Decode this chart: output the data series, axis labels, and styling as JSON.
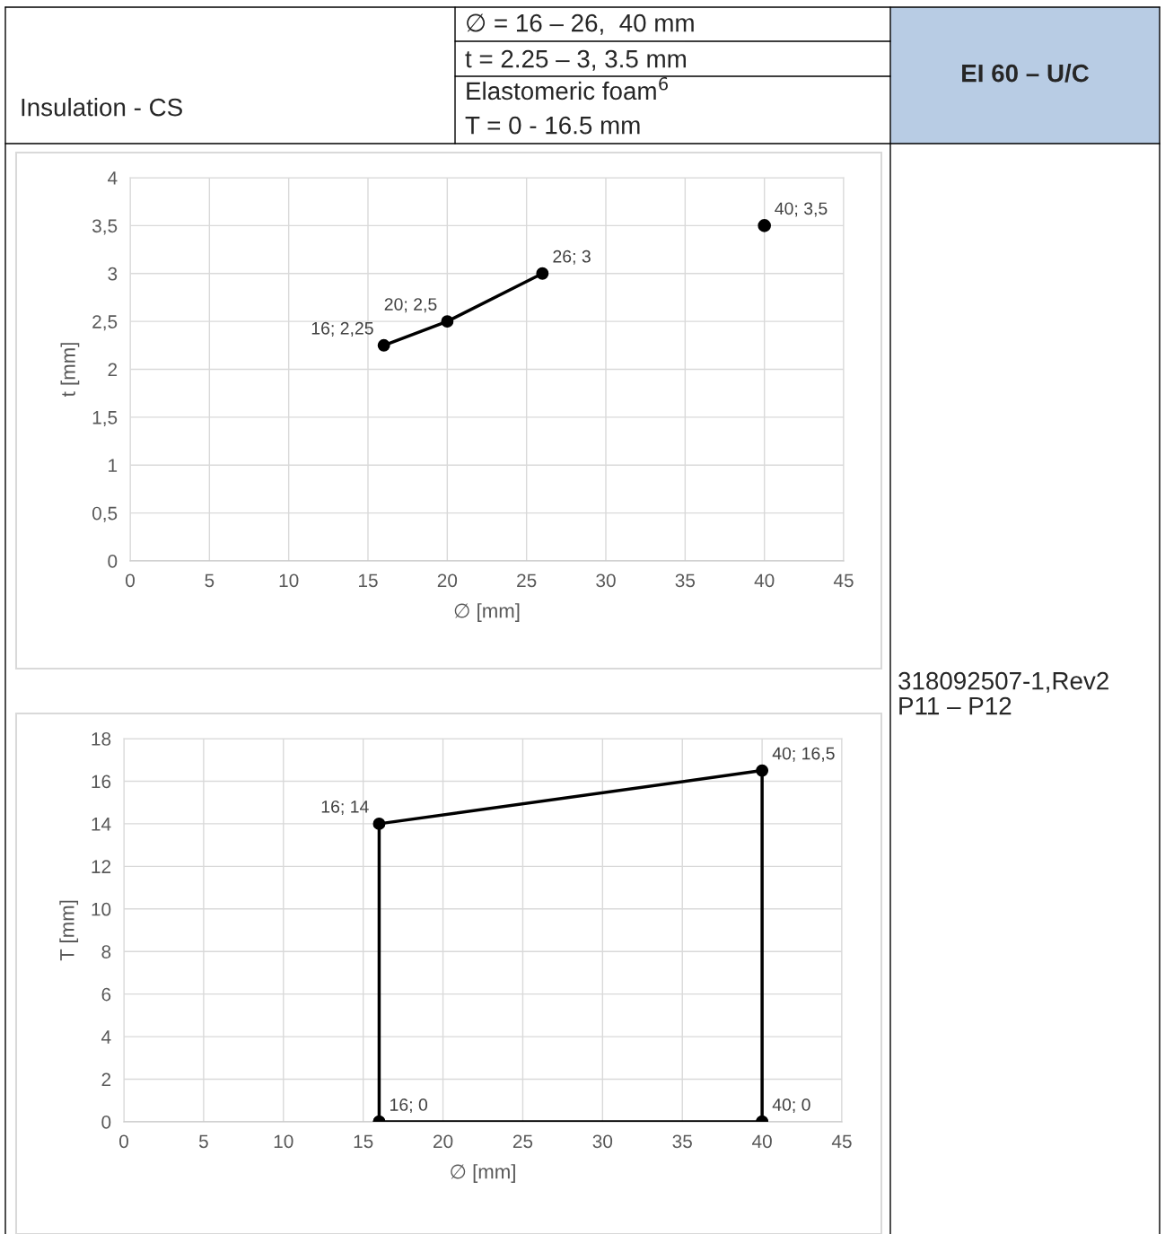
{
  "chart_data": [
    {
      "type": "other",
      "annotations": [
        "Insulation - CS",
        "∅ = 16 – 26,  40 mm",
        "t = 2.25 – 3, 3.5 mm",
        "Elastomeric foam$^{6}$",
        "T = 0 - 16.5 mm",
        "EI 60 – U/C",
        "318092507-1,Rev2\nP11 – P12"
      ]
    },
    {
      "type": "line",
      "xlabel": "∅ [mm]",
      "ylabel": "t [mm]",
      "xlim": [
        0,
        45
      ],
      "ylim": [
        0,
        4
      ],
      "xticks": [
        0,
        5,
        10,
        15,
        20,
        25,
        30,
        35,
        40,
        45
      ],
      "yticks": [
        0,
        {
          "value": 0.5,
          "label": "0,5"
        },
        1,
        {
          "value": 1.5,
          "label": "1,5"
        },
        2,
        {
          "value": 2.5,
          "label": "2,5"
        },
        3,
        {
          "value": 3.5,
          "label": "3,5"
        },
        4
      ],
      "grid": true,
      "legend": false,
      "marker": "circle",
      "line_style": "solid",
      "series": [
        {
          "type": "line",
          "color": "#000000",
          "x": [
            16,
            20,
            26
          ],
          "values": [
            2.25,
            2.5,
            3
          ],
          "value_labels": [
            "16; 2,25",
            "20; 2,5",
            "26; 3"
          ]
        },
        {
          "type": "scatter",
          "color": "#000000",
          "x": [
            40
          ],
          "values": [
            3.5
          ],
          "value_labels": [
            "40; 3,5"
          ]
        }
      ]
    },
    {
      "type": "line",
      "xlabel": "∅ [mm]",
      "ylabel": "T [mm]",
      "xlim": [
        0,
        45
      ],
      "ylim": [
        0,
        18
      ],
      "xticks": [
        0,
        5,
        10,
        15,
        20,
        25,
        30,
        35,
        40,
        45
      ],
      "yticks": [
        0,
        2,
        4,
        6,
        8,
        10,
        12,
        14,
        16,
        18
      ],
      "grid": true,
      "legend": false,
      "marker": "circle",
      "line_style": "solid",
      "series": [
        {
          "type": "line",
          "color": "#000000",
          "x": [
            16,
            16,
            40,
            40
          ],
          "values": [
            0,
            14,
            16.5,
            0
          ],
          "value_labels": [
            "16; 0",
            "16; 14",
            "40; 16,5",
            "40; 0"
          ]
        },
        {
          "type": "line",
          "color": "#000000",
          "x": [
            16,
            40
          ],
          "values": [
            0,
            0
          ]
        }
      ]
    }
  ]
}
